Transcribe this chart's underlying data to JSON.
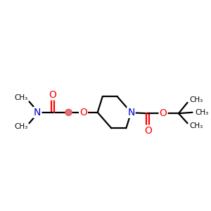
{
  "bg_color": "#ffffff",
  "atom_colors": {
    "C": "#000000",
    "N": "#0000cd",
    "O": "#ff0000"
  },
  "bond_color": "#000000",
  "bond_width": 1.6,
  "fig_size": [
    3.0,
    3.0
  ],
  "dpi": 100,
  "xlim": [
    0,
    10
  ],
  "ylim": [
    2,
    8
  ]
}
